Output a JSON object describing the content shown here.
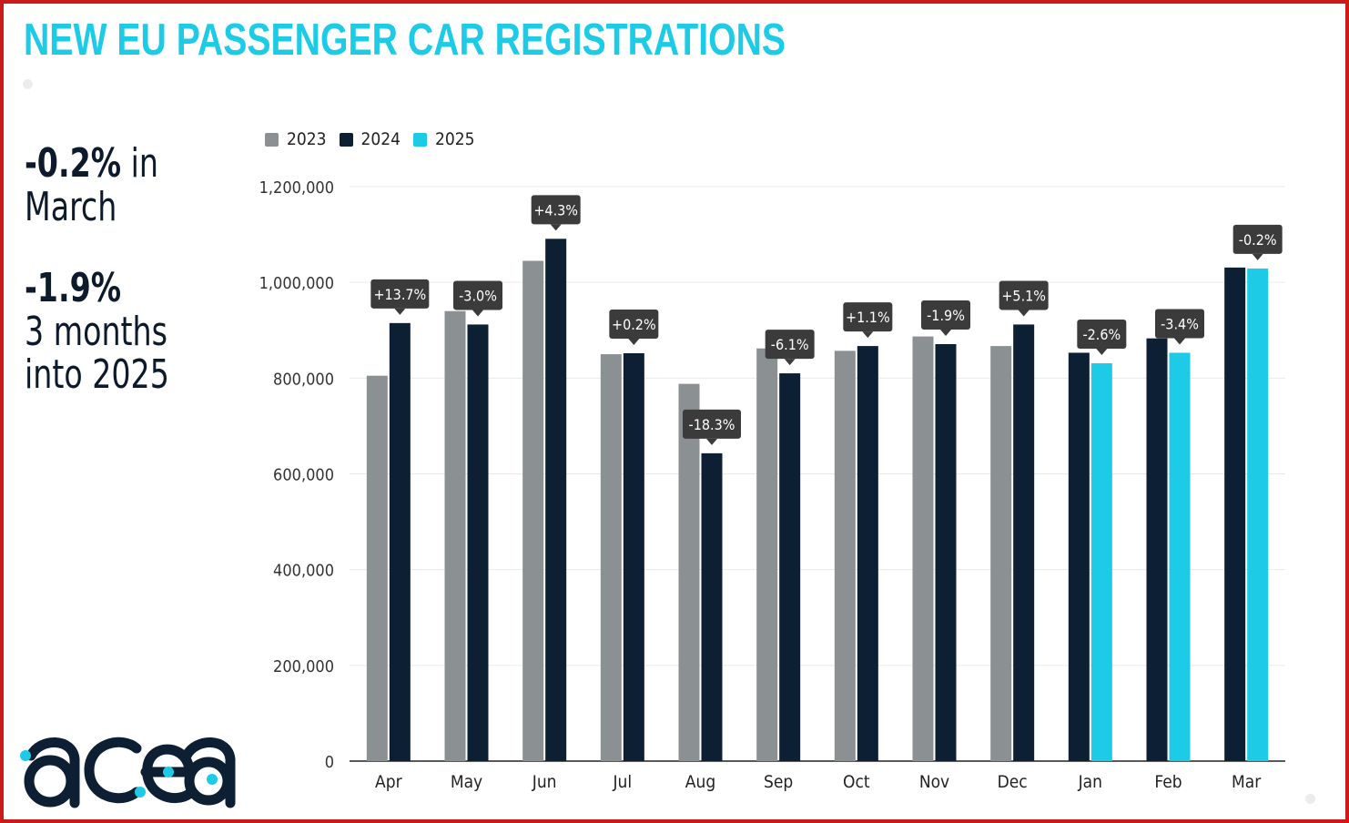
{
  "header": {
    "title": "NEW EU PASSENGER CAR REGISTRATIONS"
  },
  "summary": {
    "line1_pct": "-0.2%",
    "line1_rest": " in",
    "line2": "March",
    "line3_pct": "-1.9%",
    "line4": "3 months",
    "line5": "into 2025"
  },
  "logo": {
    "text": "acea"
  },
  "colors": {
    "title": "#1dcbe6",
    "s2023": "#8b9192",
    "s2024": "#0c1f33",
    "s2025": "#1dcbe6",
    "callout": "#3b3b3b",
    "border": "#cc1a1a"
  },
  "chart_data": {
    "type": "bar",
    "title": "NEW EU PASSENGER CAR REGISTRATIONS",
    "xlabel": "",
    "ylabel": "",
    "ylim": [
      0,
      1200000
    ],
    "yticks": [
      0,
      200000,
      400000,
      600000,
      800000,
      1000000,
      1200000
    ],
    "ytick_labels": [
      "0",
      "200,000",
      "400,000",
      "600,000",
      "800,000",
      "1,000,000",
      "1,200,000"
    ],
    "grid": true,
    "legend": "top-left",
    "categories": [
      "Apr",
      "May",
      "Jun",
      "Jul",
      "Aug",
      "Sep",
      "Oct",
      "Nov",
      "Dec",
      "Jan",
      "Feb",
      "Mar"
    ],
    "series": [
      {
        "name": "2023",
        "color": "#8b9192",
        "values": [
          805000,
          940000,
          1045000,
          850000,
          788000,
          862000,
          857000,
          887000,
          867000,
          null,
          null,
          null
        ]
      },
      {
        "name": "2024",
        "color": "#0c1f33",
        "values": [
          915000,
          912000,
          1091000,
          852000,
          643000,
          810000,
          867000,
          871000,
          912000,
          853000,
          883000,
          1031000
        ]
      },
      {
        "name": "2025",
        "color": "#1dcbe6",
        "values": [
          null,
          null,
          null,
          null,
          null,
          null,
          null,
          null,
          null,
          831000,
          853000,
          1029000
        ]
      }
    ],
    "annotations": [
      {
        "category": "Apr",
        "label": "+13.7%"
      },
      {
        "category": "May",
        "label": "-3.0%"
      },
      {
        "category": "Jun",
        "label": "+4.3%"
      },
      {
        "category": "Jul",
        "label": "+0.2%"
      },
      {
        "category": "Aug",
        "label": "-18.3%"
      },
      {
        "category": "Sep",
        "label": "-6.1%"
      },
      {
        "category": "Oct",
        "label": "+1.1%"
      },
      {
        "category": "Nov",
        "label": "-1.9%"
      },
      {
        "category": "Dec",
        "label": "+5.1%"
      },
      {
        "category": "Jan",
        "label": "-2.6%"
      },
      {
        "category": "Feb",
        "label": "-3.4%"
      },
      {
        "category": "Mar",
        "label": "-0.2%"
      }
    ]
  }
}
